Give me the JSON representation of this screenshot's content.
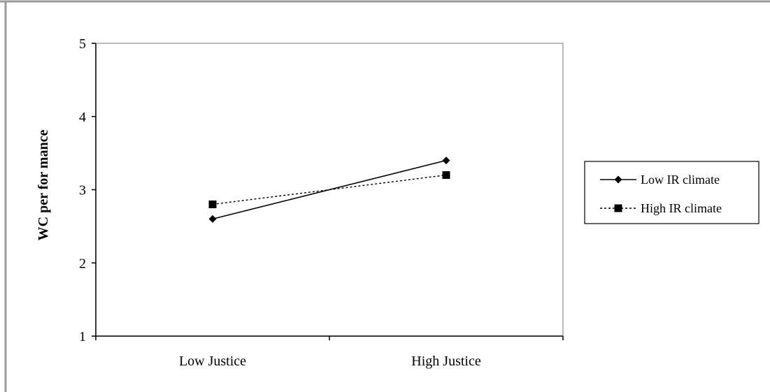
{
  "chart_data": {
    "type": "line",
    "title": "",
    "xlabel": "",
    "ylabel": "WC per for mance",
    "categories": [
      "Low Justice",
      "High Justice"
    ],
    "ylim": [
      1,
      5
    ],
    "yticks": [
      "1",
      "2",
      "3",
      "4",
      "5"
    ],
    "series": [
      {
        "name": "Low IR climate",
        "values": [
          2.6,
          3.4
        ],
        "line_style": "solid",
        "marker": "diamond",
        "color": "#000000"
      },
      {
        "name": "High IR climate",
        "values": [
          2.8,
          3.2
        ],
        "line_style": "dotted",
        "marker": "square",
        "color": "#000000"
      }
    ],
    "legend_position": "right",
    "grid": false
  }
}
